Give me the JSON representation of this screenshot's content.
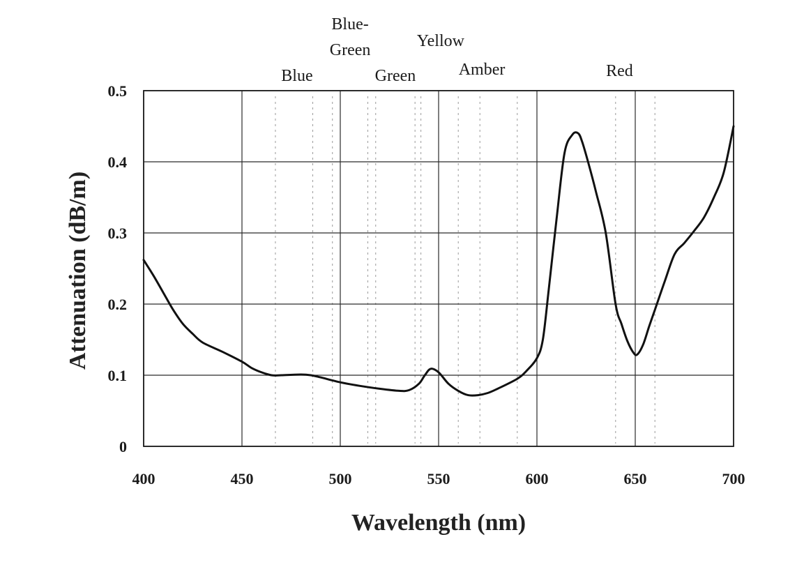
{
  "chart_data": {
    "type": "line",
    "title": "",
    "xlabel": "Wavelength (nm)",
    "ylabel": "Attenuation (dB/m)",
    "xlim": [
      400,
      700
    ],
    "ylim": [
      0,
      0.5
    ],
    "xticks": [
      400,
      450,
      500,
      550,
      600,
      650,
      700
    ],
    "yticks": [
      0,
      0.1,
      0.2,
      0.3,
      0.4,
      0.5
    ],
    "xtick_labels": [
      "400",
      "450",
      "500",
      "550",
      "600",
      "650",
      "700"
    ],
    "ytick_labels": [
      "0",
      "0.1",
      "0.2",
      "0.3",
      "0.4",
      "0.5"
    ],
    "grid": true,
    "color_regions": [
      {
        "label": "Blue",
        "center_nm": 478
      },
      {
        "label_line1": "Blue-",
        "label_line2": "Green",
        "center_nm": 505
      },
      {
        "label": "Green",
        "center_nm": 528
      },
      {
        "label": "Yellow",
        "center_nm": 551
      },
      {
        "label": "Amber",
        "center_nm": 572
      },
      {
        "label": "Red",
        "center_nm": 642
      }
    ],
    "band_lines_nm": [
      467,
      486,
      496,
      514,
      518,
      538,
      541,
      560,
      571,
      590,
      640,
      660
    ],
    "series": [
      {
        "x": [
          400,
          405,
          410,
          415,
          420,
          425,
          430,
          440,
          450,
          455,
          460,
          465,
          470,
          480,
          485,
          490,
          500,
          510,
          520,
          530,
          535,
          540,
          543,
          546,
          550,
          555,
          560,
          565,
          570,
          575,
          580,
          590,
          595,
          600,
          603,
          606,
          610,
          614,
          618,
          621,
          623,
          626,
          630,
          635,
          640,
          643,
          646,
          649,
          651,
          654,
          657,
          660,
          665,
          670,
          675,
          680,
          685,
          690,
          695,
          700
        ],
        "y": [
          0.262,
          0.24,
          0.216,
          0.192,
          0.172,
          0.158,
          0.146,
          0.133,
          0.119,
          0.11,
          0.104,
          0.1,
          0.1,
          0.101,
          0.1,
          0.097,
          0.09,
          0.085,
          0.081,
          0.078,
          0.079,
          0.088,
          0.1,
          0.109,
          0.104,
          0.088,
          0.078,
          0.072,
          0.072,
          0.075,
          0.081,
          0.095,
          0.107,
          0.124,
          0.15,
          0.22,
          0.32,
          0.412,
          0.438,
          0.44,
          0.428,
          0.4,
          0.358,
          0.3,
          0.2,
          0.172,
          0.148,
          0.132,
          0.129,
          0.143,
          0.168,
          0.192,
          0.232,
          0.27,
          0.286,
          0.303,
          0.322,
          0.35,
          0.385,
          0.45
        ]
      }
    ]
  }
}
